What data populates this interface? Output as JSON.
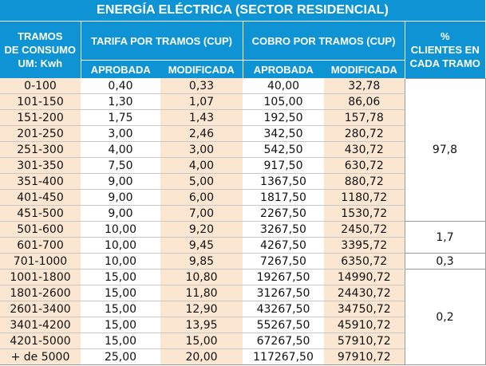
{
  "table": {
    "title": "ENERGÍA ELÉCTRICA (SECTOR RESIDENCIAL)",
    "headers": {
      "tramos_line1": "TRAMOS",
      "tramos_line2": "DE CONSUMO",
      "tramos_line3": "UM: Kwh",
      "tarifa": "TARIFA POR TRAMOS (CUP)",
      "cobro": "COBRO POR TRAMOS (CUP)",
      "pct_line1": "%",
      "pct_line2": "CLIENTES EN",
      "pct_line3": "CADA TRAMO",
      "aprobada": "APROBADA",
      "modificada": "MODIFICADA"
    },
    "rows": [
      {
        "tramo": "0-100",
        "tarifa_aprobada": "0,40",
        "tarifa_modificada": "0,33",
        "cobro_aprobada": "40,00",
        "cobro_modificada": "32,78"
      },
      {
        "tramo": "101-150",
        "tarifa_aprobada": "1,30",
        "tarifa_modificada": "1,07",
        "cobro_aprobada": "105,00",
        "cobro_modificada": "86,06"
      },
      {
        "tramo": "151-200",
        "tarifa_aprobada": "1,75",
        "tarifa_modificada": "1,43",
        "cobro_aprobada": "192,50",
        "cobro_modificada": "157,78"
      },
      {
        "tramo": "201-250",
        "tarifa_aprobada": "3,00",
        "tarifa_modificada": "2,46",
        "cobro_aprobada": "342,50",
        "cobro_modificada": "280,72"
      },
      {
        "tramo": "251-300",
        "tarifa_aprobada": "4,00",
        "tarifa_modificada": "3,00",
        "cobro_aprobada": "542,50",
        "cobro_modificada": "430,72"
      },
      {
        "tramo": "301-350",
        "tarifa_aprobada": "7,50",
        "tarifa_modificada": "4,00",
        "cobro_aprobada": "917,50",
        "cobro_modificada": "630,72"
      },
      {
        "tramo": "351-400",
        "tarifa_aprobada": "9,00",
        "tarifa_modificada": "5,00",
        "cobro_aprobada": "1367,50",
        "cobro_modificada": "880,72"
      },
      {
        "tramo": "401-450",
        "tarifa_aprobada": "9,00",
        "tarifa_modificada": "6,00",
        "cobro_aprobada": "1817,50",
        "cobro_modificada": "1180,72"
      },
      {
        "tramo": "451-500",
        "tarifa_aprobada": "9,00",
        "tarifa_modificada": "7,00",
        "cobro_aprobada": "2267,50",
        "cobro_modificada": "1530,72"
      },
      {
        "tramo": "501-600",
        "tarifa_aprobada": "10,00",
        "tarifa_modificada": "9,20",
        "cobro_aprobada": "3267,50",
        "cobro_modificada": "2450,72"
      },
      {
        "tramo": "601-700",
        "tarifa_aprobada": "10,00",
        "tarifa_modificada": "9,45",
        "cobro_aprobada": "4267,50",
        "cobro_modificada": "3395,72"
      },
      {
        "tramo": "701-1000",
        "tarifa_aprobada": "10,00",
        "tarifa_modificada": "9,85",
        "cobro_aprobada": "7267,50",
        "cobro_modificada": "6350,72"
      },
      {
        "tramo": "1001-1800",
        "tarifa_aprobada": "15,00",
        "tarifa_modificada": "10,80",
        "cobro_aprobada": "19267,50",
        "cobro_modificada": "14990,72"
      },
      {
        "tramo": "1801-2600",
        "tarifa_aprobada": "15,00",
        "tarifa_modificada": "11,80",
        "cobro_aprobada": "31267,50",
        "cobro_modificada": "24430,72"
      },
      {
        "tramo": "2601-3400",
        "tarifa_aprobada": "15,00",
        "tarifa_modificada": "12,90",
        "cobro_aprobada": "43267,50",
        "cobro_modificada": "34750,72"
      },
      {
        "tramo": "3401-4200",
        "tarifa_aprobada": "15,00",
        "tarifa_modificada": "13,95",
        "cobro_aprobada": "55267,50",
        "cobro_modificada": "45910,72"
      },
      {
        "tramo": "4201-5000",
        "tarifa_aprobada": "15,00",
        "tarifa_modificada": "15,00",
        "cobro_aprobada": "67267,50",
        "cobro_modificada": "57910,72"
      },
      {
        "tramo": "+ de 5000",
        "tarifa_aprobada": "25,00",
        "tarifa_modificada": "20,00",
        "cobro_aprobada": "117267,50",
        "cobro_modificada": "97910,72"
      }
    ],
    "pct_groups": [
      {
        "value": "97,8",
        "rows": 9
      },
      {
        "value": "1,7",
        "rows": 2
      },
      {
        "value": "0,3",
        "rows": 1
      },
      {
        "value": "0,2",
        "rows": 6
      }
    ],
    "colors": {
      "header_blue": "#0e94d5",
      "shade_peach": "#fbe6d2"
    }
  }
}
